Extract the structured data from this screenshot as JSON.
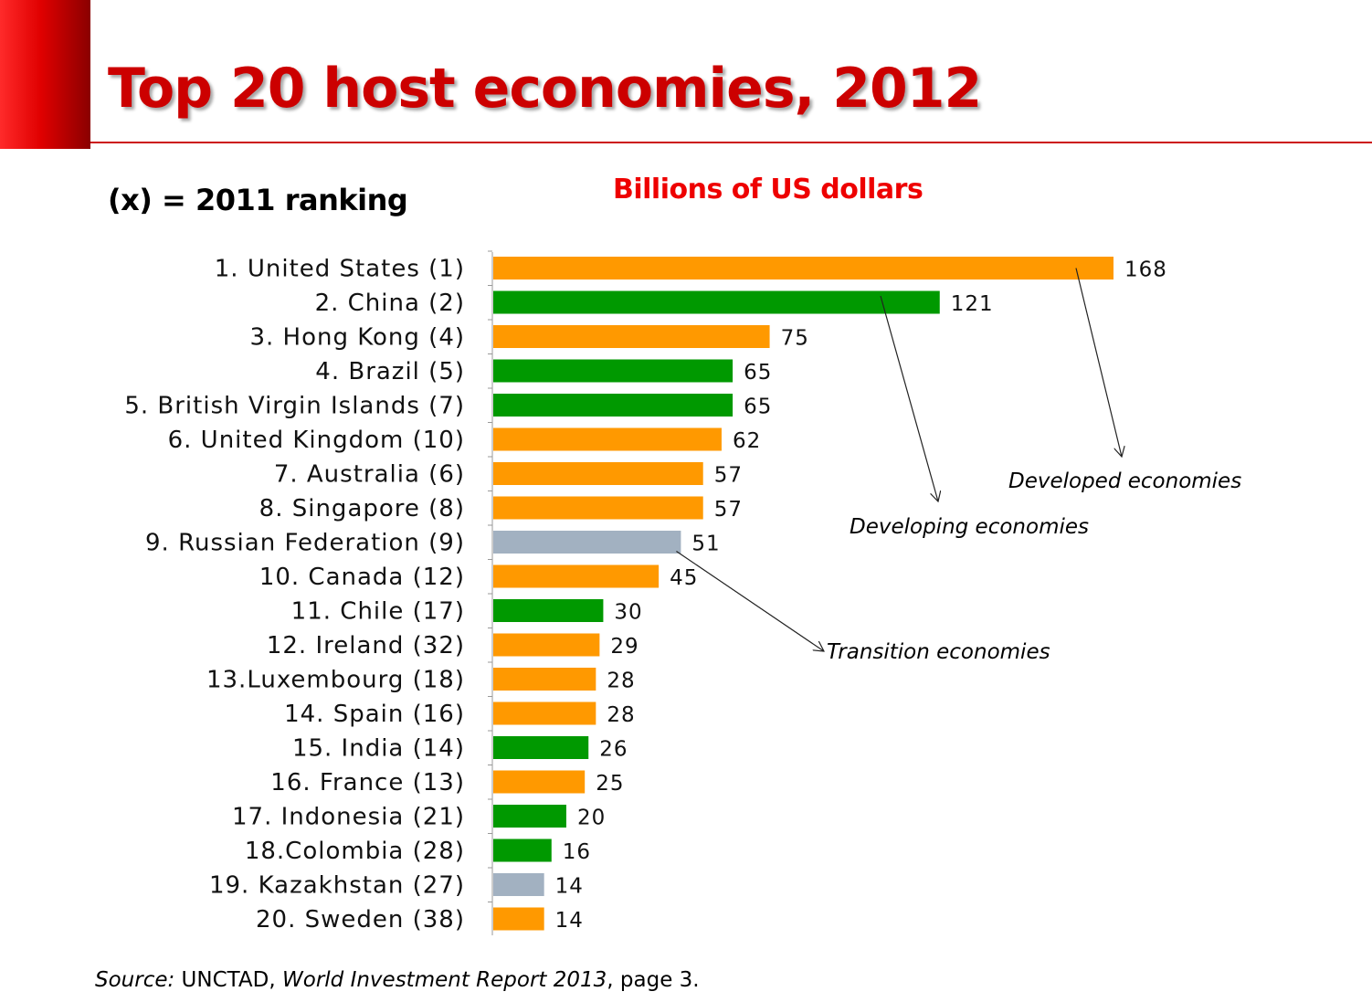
{
  "slide": {
    "title": "Top 20 host economies, 2012",
    "ranking_note": "(x) = 2011 ranking",
    "unit_label": "Billions of US dollars",
    "source": {
      "label": "Source:",
      "org": " UNCTAD, ",
      "report": "World Investment Report 2013",
      "page": ", page 3."
    }
  },
  "colors": {
    "developed": "#ff9900",
    "developing": "#009900",
    "transition": "#a2b1c1",
    "title": "#cc0000",
    "unit_label": "#ee0000"
  },
  "chart_data": {
    "type": "bar",
    "orientation": "horizontal",
    "categories": [
      "1. United States (1)",
      "2. China (2)",
      "3. Hong Kong (4)",
      "4. Brazil (5)",
      "5. British Virgin Islands (7)",
      "6. United Kingdom (10)",
      "7. Australia (6)",
      "8. Singapore (8)",
      "9. Russian Federation (9)",
      "10. Canada (12)",
      "11. Chile (17)",
      "12. Ireland (32)",
      "13.Luxembourg (18)",
      "14. Spain (16)",
      "15. India (14)",
      "16. France (13)",
      "17. Indonesia (21)",
      "18.Colombia (28)",
      "19. Kazakhstan (27)",
      "20. Sweden (38)"
    ],
    "values": [
      168,
      121,
      75,
      65,
      65,
      62,
      57,
      57,
      51,
      45,
      30,
      29,
      28,
      28,
      26,
      25,
      20,
      16,
      14,
      14
    ],
    "groups": [
      "developed",
      "developing",
      "developed",
      "developing",
      "developing",
      "developed",
      "developed",
      "developed",
      "transition",
      "developed",
      "developing",
      "developed",
      "developed",
      "developed",
      "developing",
      "developed",
      "developing",
      "developing",
      "transition",
      "developed"
    ],
    "xlim": [
      0,
      180
    ],
    "annotations": [
      {
        "text": "Developed economies",
        "points_to": "1. United States (1)"
      },
      {
        "text": "Developing economies",
        "points_to": "2. China (2)"
      },
      {
        "text": "Transition economies",
        "points_to": "9. Russian Federation (9)"
      }
    ],
    "gridlines": false,
    "legend": "none"
  }
}
